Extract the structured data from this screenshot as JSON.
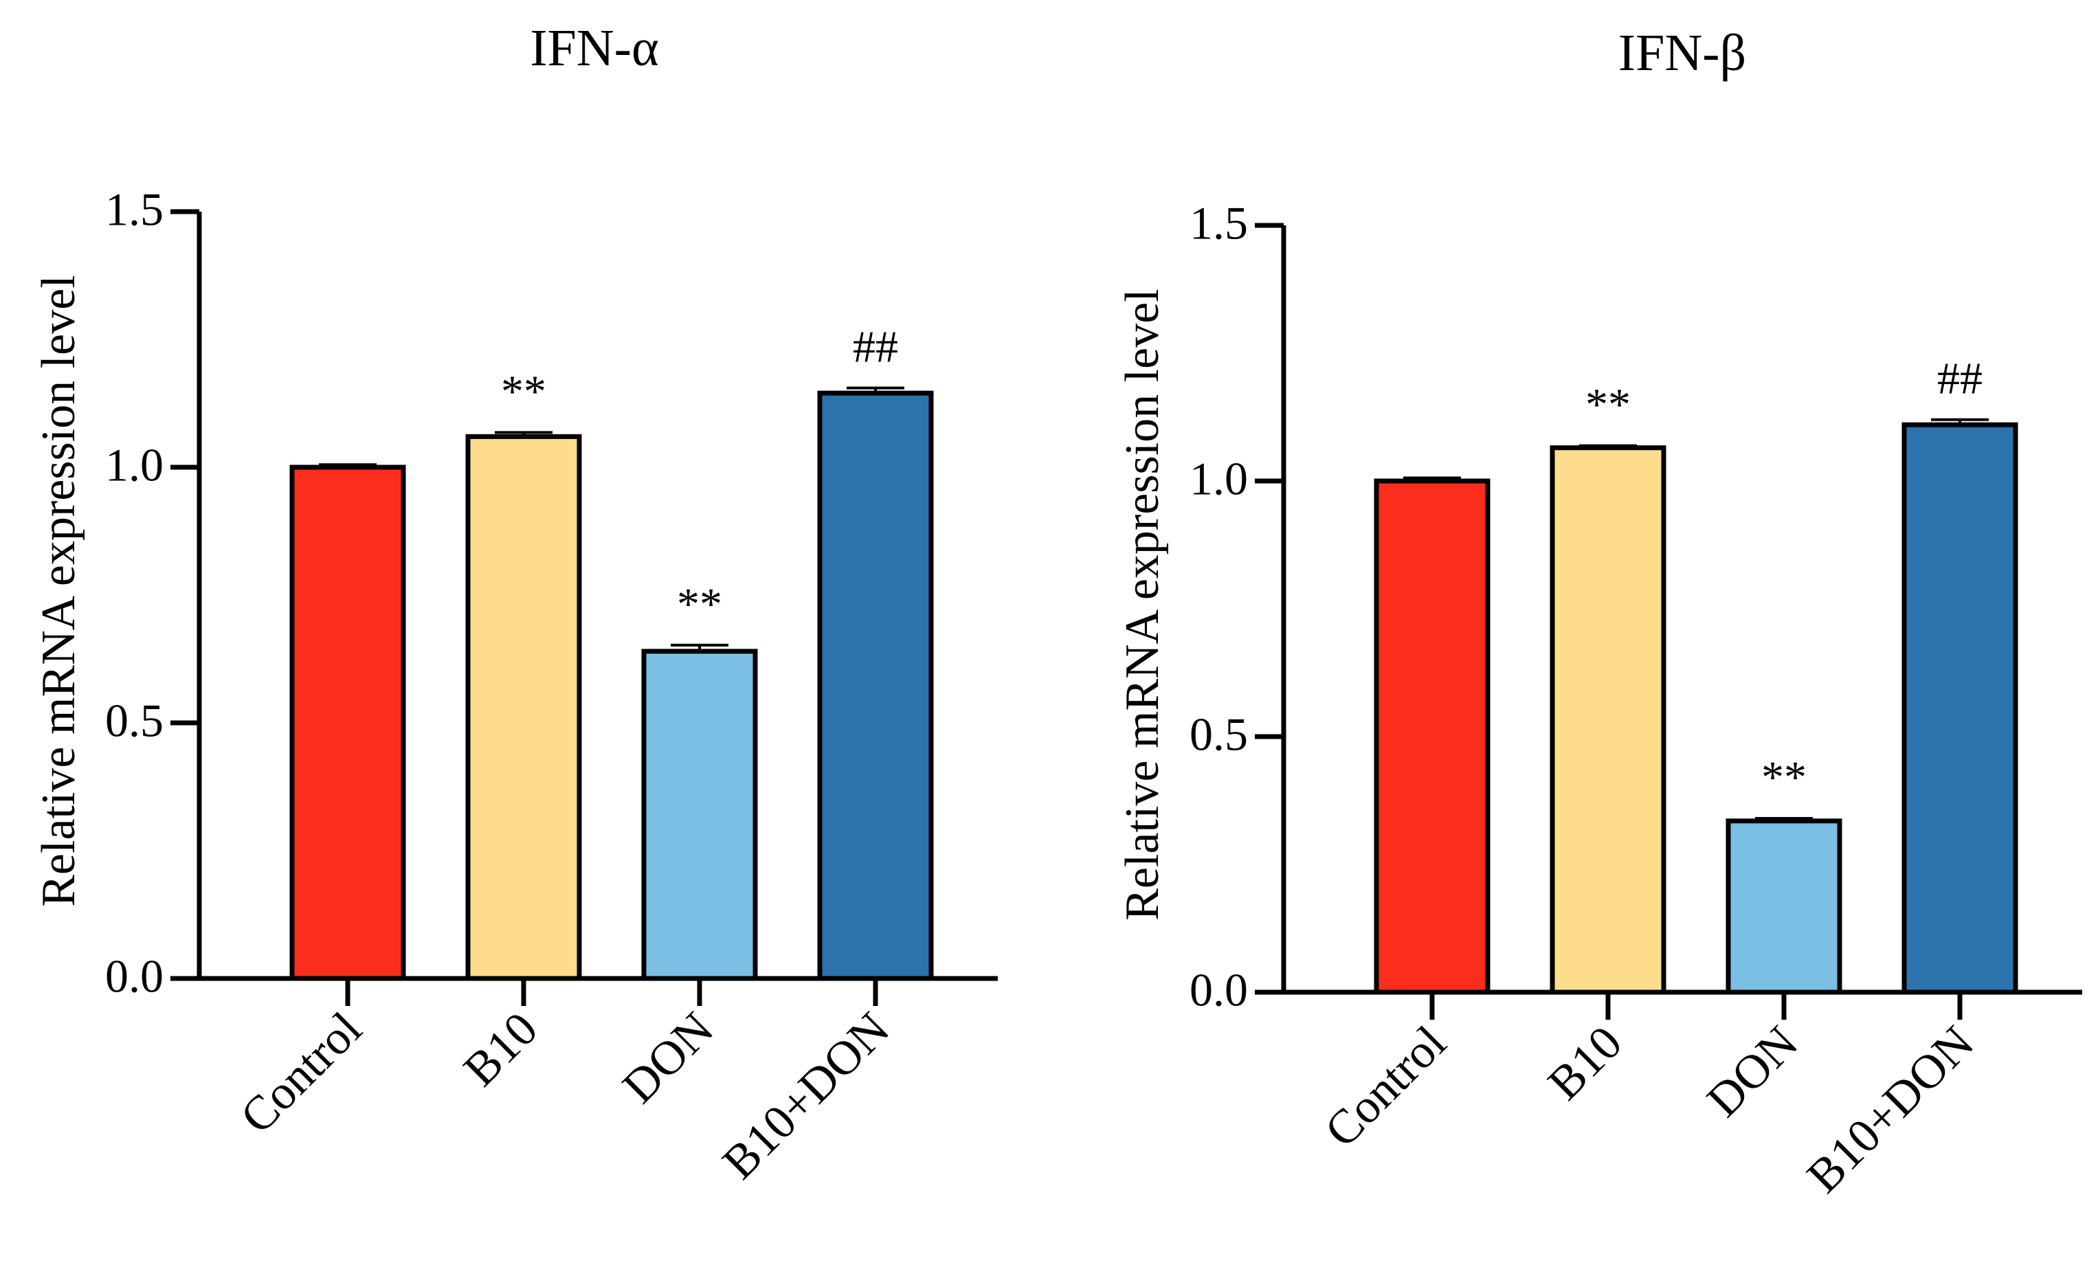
{
  "chart_data": [
    {
      "type": "bar",
      "title": "IFN-α",
      "xlabel": "",
      "ylabel": "Relative mRNA expression level",
      "categories": [
        "Control",
        "B10",
        "DON",
        "B10+DON"
      ],
      "values": [
        1.0,
        1.06,
        0.64,
        1.145
      ],
      "errors": [
        0.005,
        0.008,
        0.012,
        0.01
      ],
      "annotations": [
        "",
        "**",
        "**",
        "##"
      ],
      "colors": [
        "#fb2d1d",
        "#fddd8b",
        "#7bc0e4",
        "#2c73ad"
      ],
      "ylim": [
        0,
        1.5
      ],
      "yticks": [
        0.0,
        0.5,
        1.0,
        1.5
      ],
      "ytick_labels": [
        "0.0",
        "0.5",
        "1.0",
        "1.5"
      ],
      "grid": false,
      "legend": "none"
    },
    {
      "type": "bar",
      "title": "IFN-β",
      "xlabel": "",
      "ylabel": "Relative mRNA expression level",
      "categories": [
        "Control",
        "B10",
        "DON",
        "B10+DON"
      ],
      "values": [
        1.0,
        1.065,
        0.335,
        1.11
      ],
      "errors": [
        0.006,
        0.004,
        0.005,
        0.01
      ],
      "annotations": [
        "",
        "**",
        "**",
        "##"
      ],
      "colors": [
        "#fb2d1d",
        "#fddd8b",
        "#7bc0e4",
        "#2c73ad"
      ],
      "ylim": [
        0,
        1.5
      ],
      "yticks": [
        0.0,
        0.5,
        1.0,
        1.5
      ],
      "ytick_labels": [
        "0.0",
        "0.5",
        "1.0",
        "1.5"
      ],
      "grid": false,
      "legend": "none"
    }
  ]
}
